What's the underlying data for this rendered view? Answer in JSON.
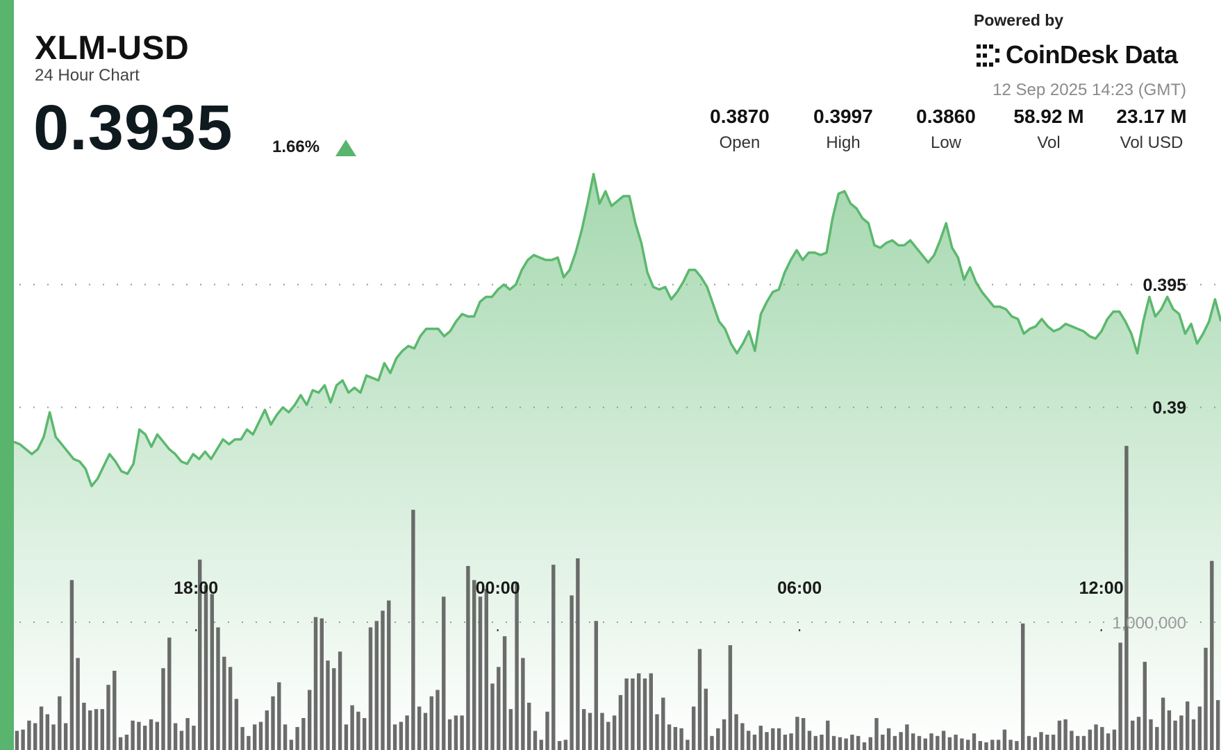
{
  "header": {
    "symbol": "XLM-USD",
    "subtitle": "24 Hour Chart",
    "price": "0.3935",
    "change_pct": "1.66%",
    "direction": "up"
  },
  "branding": {
    "powered_by": "Powered by",
    "brand_name": "CoinDesk Data",
    "logo_icon": "coindesk-logo-icon"
  },
  "timestamp": "12 Sep 2025 14:23 (GMT)",
  "stats": [
    {
      "value": "0.3870",
      "label": "Open"
    },
    {
      "value": "0.3997",
      "label": "High"
    },
    {
      "value": "0.3860",
      "label": "Low"
    },
    {
      "value": "58.92 M",
      "label": "Vol"
    },
    {
      "value": "23.17 M",
      "label": "Vol USD"
    }
  ],
  "colors": {
    "accent": "#59b46e",
    "line": "#5cb86e",
    "volume_bar": "#5e5e5e",
    "gridline": "#9a9a9a"
  },
  "chart_data": {
    "type": "area",
    "title": "",
    "xlabel": "",
    "ylabel": "",
    "grid": "dotted horizontal",
    "x_ticks": [
      "18:00",
      "00:00",
      "06:00",
      "12:00"
    ],
    "x_tick_positions_hours": [
      3.62,
      9.62,
      15.62,
      21.62
    ],
    "time_span_hours": 24,
    "y_ticks": [
      0.395,
      0.39
    ],
    "y_tick_labels": [
      "0.395",
      "0.39"
    ],
    "y_range": [
      0.386,
      0.3997
    ],
    "series": [
      {
        "values": [
          0.3886,
          0.3885,
          0.3883,
          0.3881,
          0.3883,
          0.3888,
          0.3898,
          0.3888,
          0.3885,
          0.3882,
          0.3879,
          0.3878,
          0.3875,
          0.3868,
          0.3871,
          0.3876,
          0.3881,
          0.3878,
          0.3874,
          0.3873,
          0.3877,
          0.3891,
          0.3889,
          0.3884,
          0.3889,
          0.3886,
          0.3883,
          0.3881,
          0.3878,
          0.3877,
          0.3881,
          0.3879,
          0.3882,
          0.3879,
          0.3883,
          0.3887,
          0.3885,
          0.3887,
          0.3887,
          0.3891,
          0.3889,
          0.3894,
          0.3899,
          0.3893,
          0.3897,
          0.39,
          0.3898,
          0.3901,
          0.3905,
          0.3901,
          0.3907,
          0.3906,
          0.3909,
          0.3902,
          0.3909,
          0.3911,
          0.3906,
          0.3908,
          0.3906,
          0.3913,
          0.3912,
          0.3911,
          0.3918,
          0.3914,
          0.392,
          0.3923,
          0.3925,
          0.3924,
          0.3929,
          0.3932,
          0.3932,
          0.3932,
          0.3929,
          0.3931,
          0.3935,
          0.3938,
          0.3937,
          0.3937,
          0.3943,
          0.3945,
          0.3945,
          0.3948,
          0.395,
          0.3948,
          0.395,
          0.3956,
          0.396,
          0.3962,
          0.3961,
          0.396,
          0.396,
          0.3961,
          0.3953,
          0.3956,
          0.3963,
          0.3972,
          0.3983,
          0.3995,
          0.3983,
          0.3988,
          0.3982,
          0.3984,
          0.3986,
          0.3986,
          0.3975,
          0.3967,
          0.3955,
          0.3949,
          0.3948,
          0.3949,
          0.3944,
          0.3947,
          0.3951,
          0.3956,
          0.3956,
          0.3953,
          0.3949,
          0.3942,
          0.3935,
          0.3932,
          0.3926,
          0.3922,
          0.3926,
          0.3931,
          0.3923,
          0.3938,
          0.3943,
          0.3947,
          0.3948,
          0.3955,
          0.396,
          0.3964,
          0.396,
          0.3963,
          0.3963,
          0.3962,
          0.3963,
          0.3977,
          0.3987,
          0.3988,
          0.3983,
          0.3981,
          0.3977,
          0.3975,
          0.3966,
          0.3965,
          0.3967,
          0.3968,
          0.3966,
          0.3966,
          0.3968,
          0.3965,
          0.3962,
          0.3959,
          0.3962,
          0.3968,
          0.3975,
          0.3965,
          0.3961,
          0.3952,
          0.3957,
          0.3951,
          0.3947,
          0.3944,
          0.3941,
          0.3941,
          0.394,
          0.3937,
          0.3936,
          0.393,
          0.3932,
          0.3933,
          0.3936,
          0.3933,
          0.3931,
          0.3932,
          0.3934,
          0.3933,
          0.3932,
          0.3931,
          0.3929,
          0.3928,
          0.3931,
          0.3936,
          0.3939,
          0.3939,
          0.3935,
          0.393,
          0.3922,
          0.3935,
          0.3945,
          0.3937,
          0.394,
          0.3945,
          0.394,
          0.3938,
          0.393,
          0.3934,
          0.3926,
          0.393,
          0.3935,
          0.3944,
          0.3935
        ]
      }
    ],
    "volume": {
      "tick_value": 1000000,
      "tick_label": "1,000,000",
      "values": [
        150000,
        160000,
        230000,
        210000,
        340000,
        280000,
        200000,
        420000,
        210000,
        1330000,
        720000,
        370000,
        310000,
        320000,
        320000,
        510000,
        620000,
        100000,
        120000,
        230000,
        220000,
        190000,
        240000,
        220000,
        640000,
        880000,
        210000,
        150000,
        250000,
        190000,
        1490000,
        1290000,
        1220000,
        960000,
        730000,
        650000,
        400000,
        180000,
        110000,
        200000,
        220000,
        310000,
        420000,
        530000,
        200000,
        80000,
        180000,
        250000,
        470000,
        1040000,
        1030000,
        700000,
        640000,
        770000,
        200000,
        350000,
        300000,
        250000,
        960000,
        1010000,
        1090000,
        1170000,
        200000,
        220000,
        270000,
        1880000,
        340000,
        290000,
        420000,
        470000,
        1200000,
        240000,
        270000,
        270000,
        1440000,
        1330000,
        1200000,
        1260000,
        520000,
        650000,
        890000,
        320000,
        1310000,
        720000,
        370000,
        150000,
        80000,
        300000,
        1450000,
        70000,
        80000,
        1210000,
        1500000,
        320000,
        290000,
        1010000,
        290000,
        220000,
        270000,
        430000,
        560000,
        560000,
        600000,
        560000,
        600000,
        280000,
        410000,
        200000,
        180000,
        170000,
        80000,
        340000,
        790000,
        480000,
        110000,
        170000,
        240000,
        820000,
        280000,
        210000,
        150000,
        120000,
        190000,
        140000,
        170000,
        170000,
        120000,
        130000,
        260000,
        250000,
        150000,
        110000,
        120000,
        230000,
        110000,
        100000,
        90000,
        120000,
        110000,
        60000,
        100000,
        250000,
        120000,
        170000,
        110000,
        140000,
        200000,
        130000,
        110000,
        90000,
        130000,
        110000,
        150000,
        100000,
        120000,
        90000,
        80000,
        130000,
        70000,
        60000,
        80000,
        80000,
        160000,
        80000,
        70000,
        990000,
        110000,
        100000,
        140000,
        120000,
        120000,
        230000,
        240000,
        150000,
        110000,
        110000,
        160000,
        200000,
        180000,
        130000,
        160000,
        840000,
        2380000,
        230000,
        260000,
        690000,
        240000,
        180000,
        410000,
        310000,
        230000,
        270000,
        380000,
        240000,
        340000,
        800000,
        1480000,
        390000
      ]
    }
  }
}
